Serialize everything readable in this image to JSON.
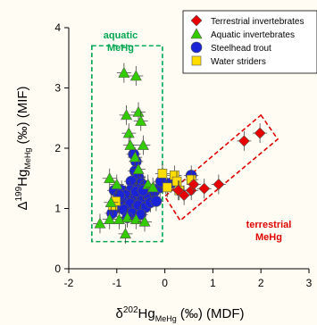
{
  "chart_data": {
    "type": "scatter",
    "xlim": [
      -2,
      3
    ],
    "ylim": [
      0,
      4
    ],
    "x_ticks": [
      "-2",
      "-1",
      "0",
      "1",
      "2",
      "3"
    ],
    "y_ticks": [
      "0",
      "1",
      "2",
      "3",
      "4"
    ],
    "xlabel": {
      "pre": "δ",
      "sup": "202",
      "main": "Hg",
      "sub": "MeHg",
      "post": " (‰) (MDF)"
    },
    "ylabel": {
      "pre": "Δ",
      "sup": "199",
      "main": "Hg",
      "sub": "MeHg",
      "post": " (‰) (MIF)"
    },
    "grid": false,
    "legend_position": "top-right",
    "annotations": [
      {
        "id": "aquatic",
        "lines": [
          "aquatic",
          "MeHg"
        ],
        "color": "#00a651"
      },
      {
        "id": "terrestrial",
        "lines": [
          "terrestrial",
          "MeHg"
        ],
        "color": "#e00000"
      }
    ],
    "series": [
      {
        "name": "Terrestrial invertebrates",
        "marker": "diamond",
        "color": "#e60000",
        "points": [
          [
            1.65,
            2.12
          ],
          [
            1.98,
            2.25
          ],
          [
            1.12,
            1.4
          ],
          [
            0.82,
            1.33
          ],
          [
            0.55,
            1.3
          ],
          [
            0.4,
            1.22
          ],
          [
            0.6,
            1.4
          ],
          [
            0.28,
            1.3
          ]
        ]
      },
      {
        "name": "Aquatic invertebrates",
        "marker": "triangle",
        "color": "#33cc00",
        "points": [
          [
            -0.85,
            3.25
          ],
          [
            -0.6,
            3.2
          ],
          [
            -0.8,
            2.55
          ],
          [
            -0.55,
            2.6
          ],
          [
            -0.5,
            2.45
          ],
          [
            -0.75,
            2.25
          ],
          [
            -0.72,
            2.05
          ],
          [
            -0.45,
            2.05
          ],
          [
            -0.62,
            1.85
          ],
          [
            -0.55,
            1.65
          ],
          [
            -1.15,
            1.5
          ],
          [
            -1.0,
            1.4
          ],
          [
            -0.35,
            1.4
          ],
          [
            -0.25,
            1.35
          ],
          [
            -1.12,
            1.1
          ],
          [
            -1.35,
            0.75
          ],
          [
            -1.15,
            0.82
          ],
          [
            -0.95,
            0.82
          ],
          [
            -0.78,
            0.85
          ],
          [
            -0.82,
            0.58
          ],
          [
            -0.6,
            0.82
          ],
          [
            -0.42,
            0.78
          ]
        ]
      },
      {
        "name": "Steelhead trout",
        "marker": "circle",
        "color": "#1a23d6",
        "points": [
          [
            -0.65,
            1.9
          ],
          [
            -0.6,
            1.78
          ],
          [
            -0.62,
            1.62
          ],
          [
            -0.55,
            1.52
          ],
          [
            -0.7,
            1.45
          ],
          [
            -0.5,
            1.42
          ],
          [
            -0.42,
            1.38
          ],
          [
            -0.58,
            1.32
          ],
          [
            -0.72,
            1.3
          ],
          [
            -0.9,
            1.3
          ],
          [
            -1.05,
            1.3
          ],
          [
            -0.82,
            1.22
          ],
          [
            -0.62,
            1.2
          ],
          [
            -0.48,
            1.18
          ],
          [
            -0.35,
            1.22
          ],
          [
            -0.22,
            1.28
          ],
          [
            -0.1,
            1.35
          ],
          [
            0.02,
            1.4
          ],
          [
            -0.08,
            1.45
          ],
          [
            0.12,
            1.42
          ],
          [
            -0.9,
            1.12
          ],
          [
            -0.72,
            1.08
          ],
          [
            -0.55,
            1.05
          ],
          [
            -0.4,
            1.02
          ],
          [
            -1.0,
            1.02
          ],
          [
            -0.85,
            0.98
          ],
          [
            -1.1,
            0.92
          ],
          [
            -0.68,
            0.92
          ],
          [
            -0.5,
            0.9
          ],
          [
            -0.78,
            0.85
          ],
          [
            -0.6,
            1.28
          ],
          [
            -0.45,
            1.3
          ],
          [
            -0.3,
            1.1
          ],
          [
            -0.18,
            1.12
          ],
          [
            0.55,
            1.55
          ],
          [
            -0.95,
            1.22
          ]
        ]
      },
      {
        "name": "Water striders",
        "marker": "square",
        "color": "#ffdd00",
        "points": [
          [
            -0.05,
            1.58
          ],
          [
            0.2,
            1.55
          ],
          [
            0.55,
            1.48
          ],
          [
            0.25,
            1.45
          ],
          [
            0.05,
            1.35
          ],
          [
            0.3,
            1.3
          ],
          [
            -1.08,
            1.05
          ],
          [
            -1.02,
            1.12
          ]
        ]
      }
    ]
  }
}
